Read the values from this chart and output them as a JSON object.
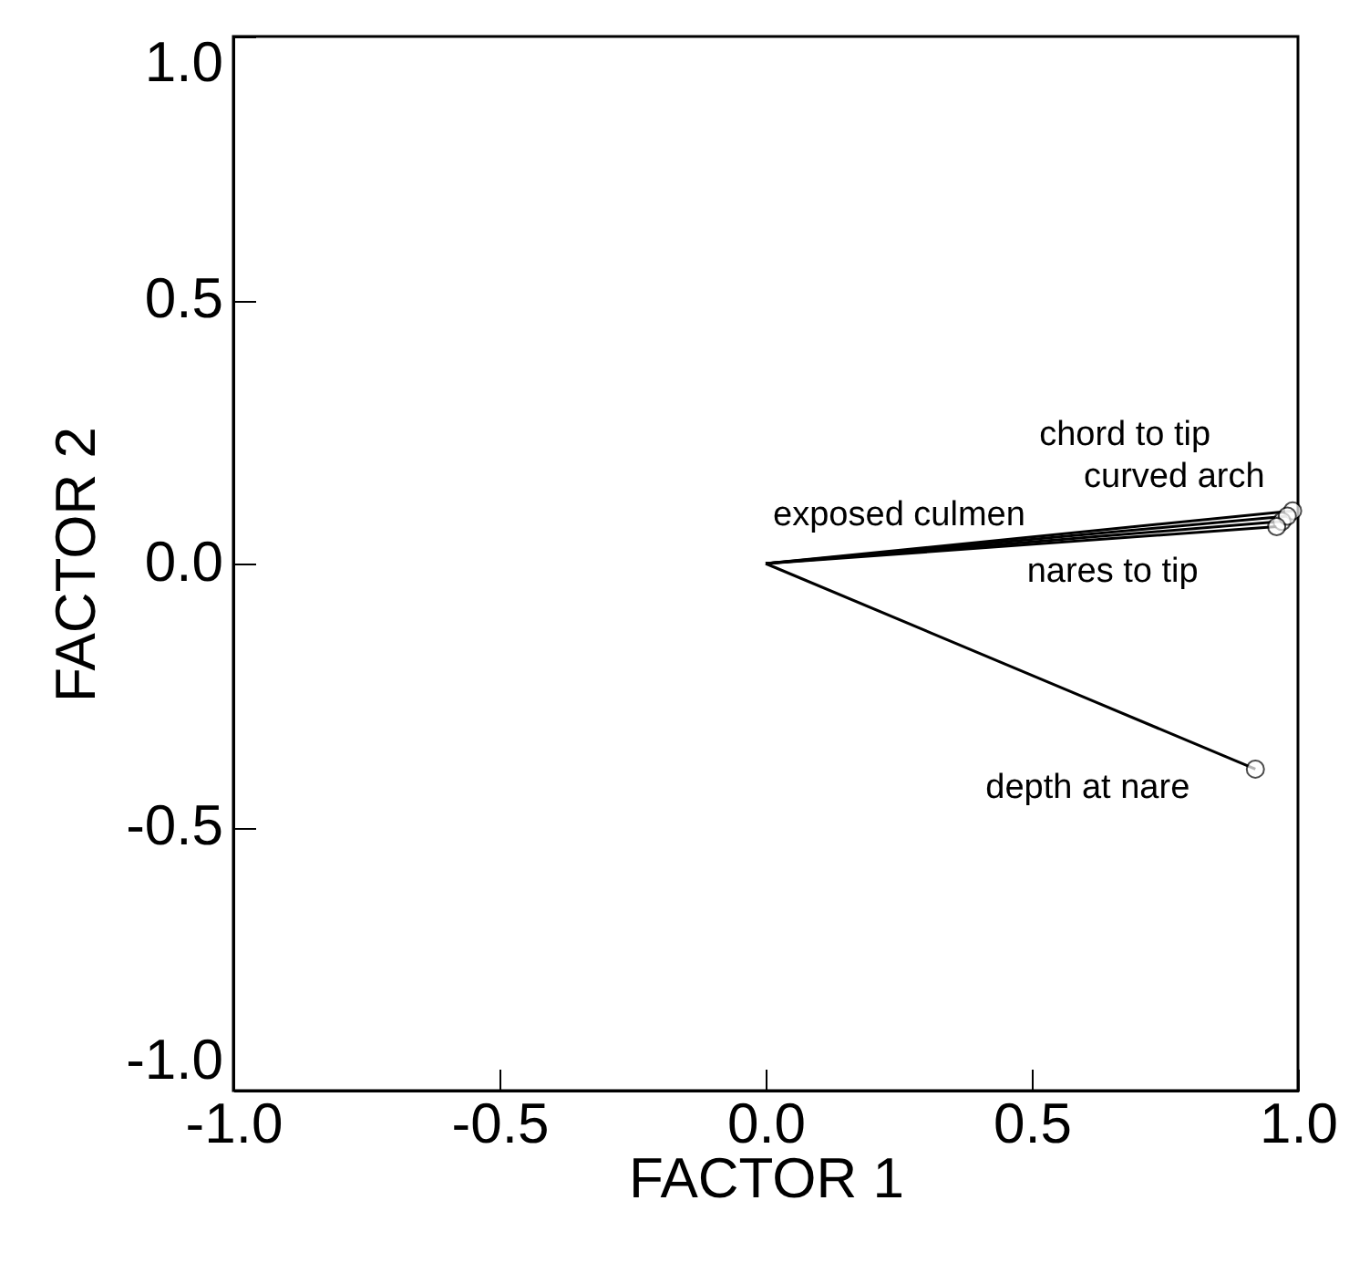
{
  "chart_data": {
    "type": "line",
    "xlabel": "FACTOR 1",
    "ylabel": "FACTOR 2",
    "xlim": [
      -1,
      1
    ],
    "ylim": [
      -1,
      1
    ],
    "xticks": [
      {
        "value": -1,
        "label": "-1.0"
      },
      {
        "value": -0.5,
        "label": "-0.5"
      },
      {
        "value": 0,
        "label": "0.0"
      },
      {
        "value": 0.5,
        "label": "0.5"
      },
      {
        "value": 1,
        "label": "1.0"
      }
    ],
    "yticks": [
      {
        "value": -1,
        "label": "-1.0"
      },
      {
        "value": -0.5,
        "label": "-0.5"
      },
      {
        "value": 0,
        "label": "0.0"
      },
      {
        "value": 0.5,
        "label": "0.5"
      },
      {
        "value": 1,
        "label": "1.0"
      }
    ],
    "grid": false,
    "legend": false,
    "marker": "circle",
    "line_style": "solid",
    "series": [
      {
        "name": "chord to tip",
        "color": "#000000",
        "x": [
          0,
          0.99
        ],
        "values": [
          0,
          0.1
        ]
      },
      {
        "name": "exposed culmen",
        "color": "#000000",
        "x": [
          0,
          0.97
        ],
        "values": [
          0,
          0.08
        ]
      },
      {
        "name": "curved arch",
        "color": "#000000",
        "x": [
          0,
          0.98
        ],
        "values": [
          0,
          0.09
        ]
      },
      {
        "name": "nares to tip",
        "color": "#000000",
        "x": [
          0,
          0.96
        ],
        "values": [
          0,
          0.07
        ]
      },
      {
        "name": "depth at nare",
        "color": "#000000",
        "x": [
          0,
          0.92
        ],
        "values": [
          0,
          -0.39
        ]
      }
    ]
  }
}
